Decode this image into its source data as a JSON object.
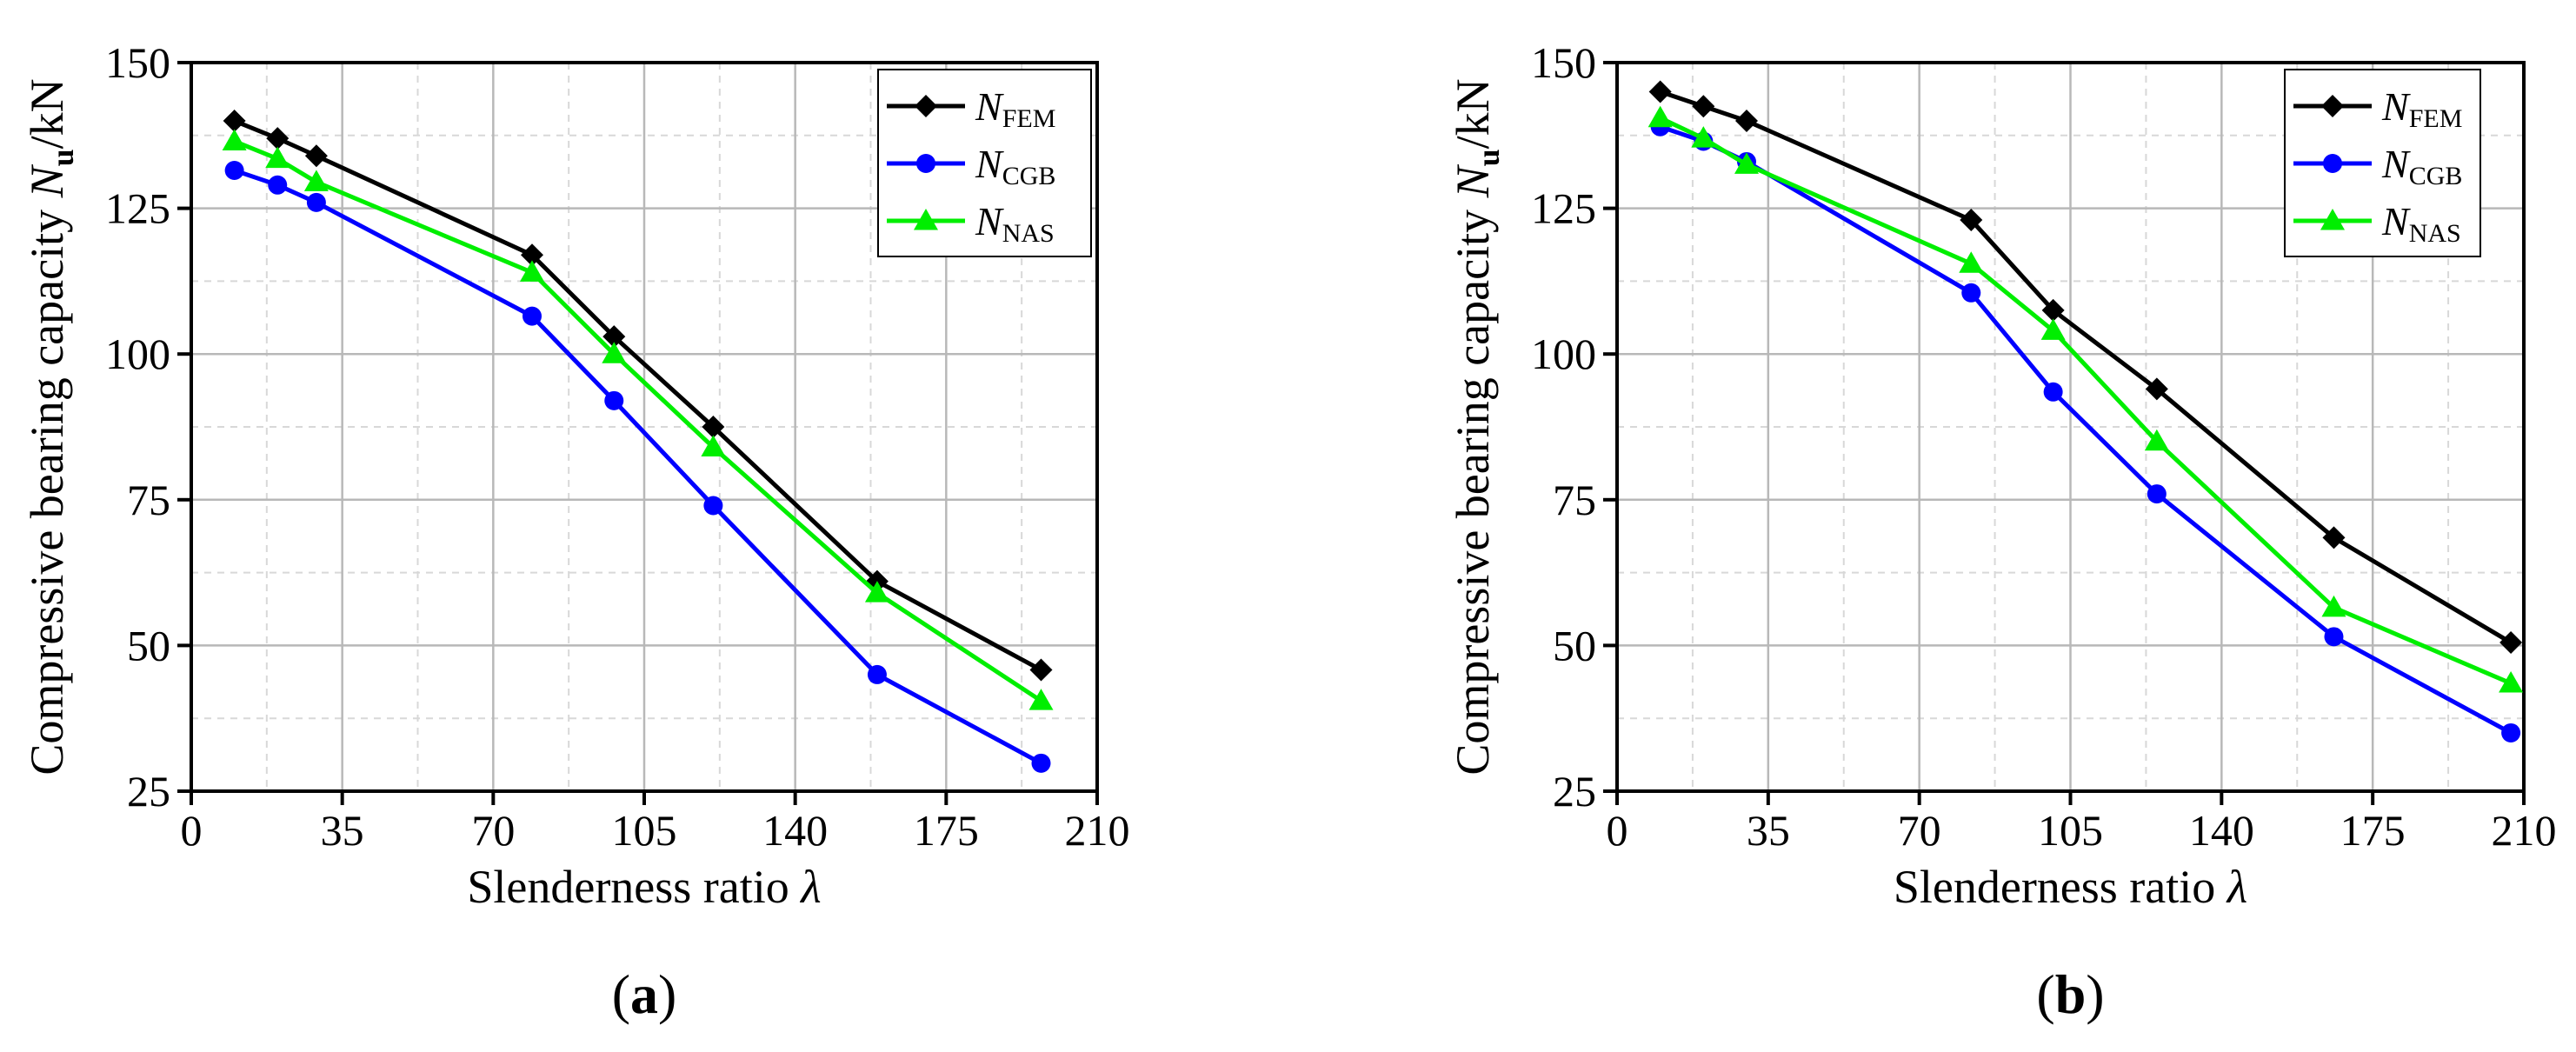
{
  "chart_data": [
    {
      "panel": "a",
      "type": "line",
      "panel_label": {
        "open": "(",
        "letter": "a",
        "close": ")"
      },
      "xlabel": {
        "text": "Slenderness ratio ",
        "symbol": "λ"
      },
      "ylabel": {
        "text": "Compressive bearing capacity ",
        "symbol": "N",
        "sub": "u",
        "unit": "/kN"
      },
      "xlim": [
        0,
        210
      ],
      "ylim": [
        25,
        150
      ],
      "xticks": [
        0,
        35,
        70,
        105,
        140,
        175,
        210
      ],
      "xtick_labels": [
        "0",
        "35",
        "70",
        "105",
        "140",
        "175",
        "210"
      ],
      "yticks": [
        25,
        50,
        75,
        100,
        125,
        150
      ],
      "ytick_labels": [
        "25",
        "50",
        "75",
        "100",
        "125",
        "150"
      ],
      "grid": true,
      "legend_position": "top-right",
      "series": [
        {
          "name": "N",
          "sub": "FEM",
          "color": "#000000",
          "marker": "diamond",
          "x": [
            10,
            20,
            29,
            79,
            98,
            121,
            159,
            197
          ],
          "y": [
            140,
            137,
            134,
            117,
            103,
            87.5,
            61,
            45.8
          ]
        },
        {
          "name": "N",
          "sub": "CGB",
          "color": "#0000ff",
          "marker": "circle",
          "x": [
            10,
            20,
            29,
            79,
            98,
            121,
            159,
            197
          ],
          "y": [
            131.5,
            129,
            126,
            106.5,
            92,
            74,
            45,
            29.8
          ]
        },
        {
          "name": "N",
          "sub": "NAS",
          "color": "#00ee00",
          "marker": "triangle",
          "x": [
            10,
            20,
            29,
            79,
            98,
            121,
            159,
            197
          ],
          "y": [
            136.5,
            133.5,
            129.5,
            114,
            100,
            84,
            59,
            40.5
          ]
        }
      ]
    },
    {
      "panel": "b",
      "type": "line",
      "panel_label": {
        "open": "(",
        "letter": "b",
        "close": ")"
      },
      "xlabel": {
        "text": "Slenderness ratio ",
        "symbol": "λ"
      },
      "ylabel": {
        "text": "Compressive bearing capacity ",
        "symbol": "N",
        "sub": "u",
        "unit": "/kN"
      },
      "xlim": [
        0,
        210
      ],
      "ylim": [
        25,
        150
      ],
      "xticks": [
        0,
        35,
        70,
        105,
        140,
        175,
        210
      ],
      "xtick_labels": [
        "0",
        "35",
        "70",
        "105",
        "140",
        "175",
        "210"
      ],
      "yticks": [
        25,
        50,
        75,
        100,
        125,
        150
      ],
      "ytick_labels": [
        "25",
        "50",
        "75",
        "100",
        "125",
        "150"
      ],
      "grid": true,
      "legend_position": "top-right",
      "series": [
        {
          "name": "N",
          "sub": "FEM",
          "color": "#000000",
          "marker": "diamond",
          "x": [
            10,
            20,
            30,
            82,
            101,
            125,
            166,
            207
          ],
          "y": [
            145,
            142.5,
            140,
            123,
            107.5,
            94,
            68.5,
            50.5
          ]
        },
        {
          "name": "N",
          "sub": "CGB",
          "color": "#0000ff",
          "marker": "circle",
          "x": [
            10,
            20,
            30,
            82,
            101,
            125,
            166,
            207
          ],
          "y": [
            139,
            136.5,
            133,
            110.5,
            93.5,
            76,
            51.5,
            35
          ]
        },
        {
          "name": "N",
          "sub": "NAS",
          "color": "#00ee00",
          "marker": "triangle",
          "x": [
            10,
            20,
            30,
            82,
            101,
            125,
            166,
            207
          ],
          "y": [
            140.5,
            137,
            132.5,
            115.5,
            104,
            85,
            56.5,
            43.5
          ]
        }
      ]
    }
  ]
}
